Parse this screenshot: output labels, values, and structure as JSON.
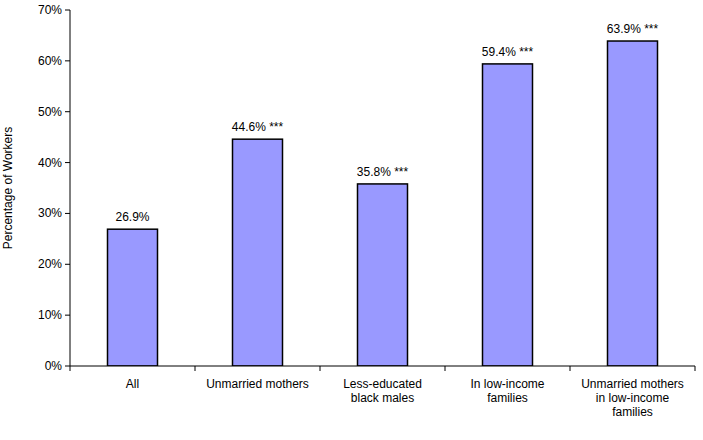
{
  "chart_data": {
    "type": "bar",
    "ylabel": "Percentage of Workers",
    "categories": [
      "All",
      "Unmarried mothers",
      "Less-educated black males",
      "In low-income families",
      "Unmarried mothers in low-income families"
    ],
    "values": [
      26.9,
      44.6,
      35.8,
      59.4,
      63.9
    ],
    "value_labels": [
      "26.9%",
      "44.6% ***",
      "35.8% ***",
      "59.4% ***",
      "63.9% ***"
    ],
    "color": "#9999ff",
    "data_labels": true,
    "grid": false,
    "ylim": [
      0,
      70
    ],
    "yticks": [
      {
        "value": 0,
        "label": "0%"
      },
      {
        "value": 10,
        "label": "10%"
      },
      {
        "value": 20,
        "label": "20%"
      },
      {
        "value": 30,
        "label": "30%"
      },
      {
        "value": 40,
        "label": "40%"
      },
      {
        "value": 50,
        "label": "50%"
      },
      {
        "value": 60,
        "label": "60%"
      },
      {
        "value": 70,
        "label": "70%"
      }
    ]
  }
}
